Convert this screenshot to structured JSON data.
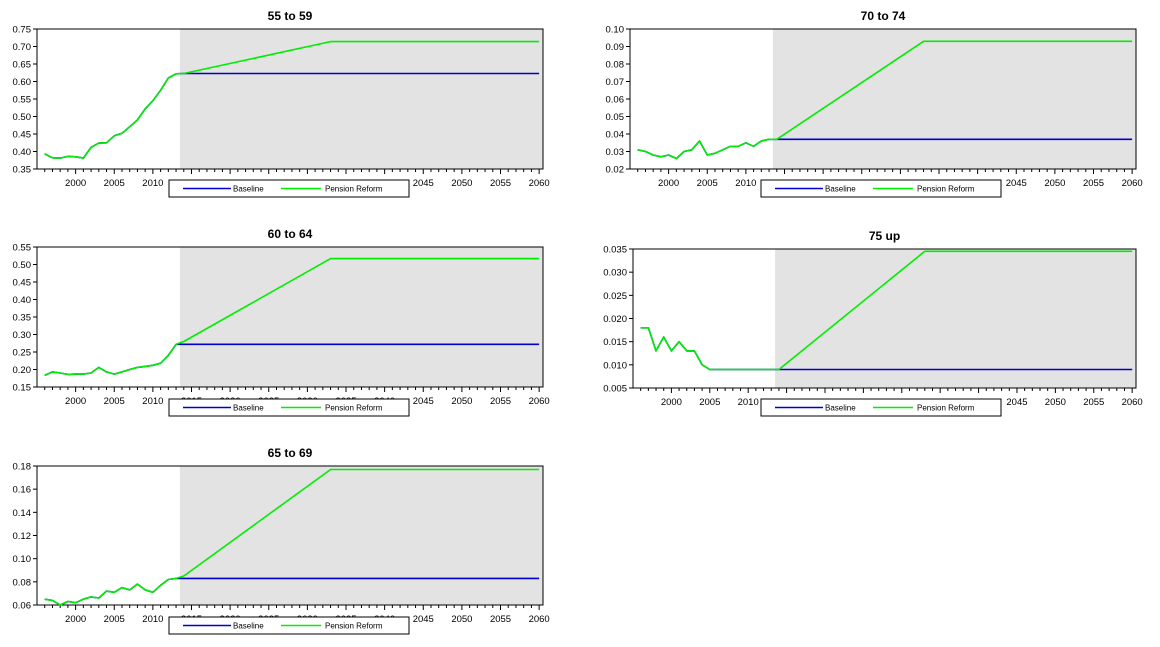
{
  "chart_data": [
    {
      "type": "line",
      "title": "55 to 59",
      "xlabel": "",
      "ylabel": "",
      "xlim": [
        1995,
        2060.5
      ],
      "ylim": [
        0.35,
        0.75
      ],
      "yticks": [
        0.35,
        0.4,
        0.45,
        0.5,
        0.55,
        0.6,
        0.65,
        0.7,
        0.75
      ],
      "ytick_labels": [
        "0.35",
        "0.40",
        "0.45",
        "0.50",
        "0.55",
        "0.60",
        "0.65",
        "0.70",
        "0.75"
      ],
      "xticks": [
        2000,
        2005,
        2010,
        2015,
        2020,
        2025,
        2030,
        2035,
        2040,
        2045,
        2050,
        2055,
        2060
      ],
      "xtick_labels": [
        "2000",
        "2005",
        "2010",
        "2015",
        "2020",
        "2025",
        "2030",
        "2035",
        "2040",
        "2045",
        "2050",
        "2055",
        "2060"
      ],
      "shaded_region": [
        2013.5,
        2060.5
      ],
      "legend_position": "bottom",
      "series": [
        {
          "name": "Baseline",
          "color": "#0000cc",
          "x": [
            1996,
            1997,
            1998,
            1999,
            2000,
            2001,
            2002,
            2003,
            2004,
            2005,
            2006,
            2007,
            2008,
            2009,
            2010,
            2011,
            2012,
            2013,
            2014,
            2060
          ],
          "y": [
            0.393,
            0.382,
            0.381,
            0.386,
            0.385,
            0.381,
            0.412,
            0.424,
            0.425,
            0.445,
            0.452,
            0.471,
            0.49,
            0.522,
            0.545,
            0.575,
            0.61,
            0.622,
            0.623,
            0.623
          ]
        },
        {
          "name": "Pension Reform",
          "color": "#00ee00",
          "x": [
            1996,
            1997,
            1998,
            1999,
            2000,
            2001,
            2002,
            2003,
            2004,
            2005,
            2006,
            2007,
            2008,
            2009,
            2010,
            2011,
            2012,
            2013,
            2014,
            2033,
            2060
          ],
          "y": [
            0.393,
            0.382,
            0.381,
            0.386,
            0.385,
            0.381,
            0.412,
            0.424,
            0.425,
            0.445,
            0.452,
            0.471,
            0.49,
            0.522,
            0.545,
            0.575,
            0.61,
            0.622,
            0.623,
            0.714,
            0.714
          ]
        }
      ]
    },
    {
      "type": "line",
      "title": "70 to 74",
      "xlabel": "",
      "ylabel": "",
      "xlim": [
        1995,
        2060.5
      ],
      "ylim": [
        0.02,
        0.1
      ],
      "yticks": [
        0.02,
        0.03,
        0.04,
        0.05,
        0.06,
        0.07,
        0.08,
        0.09,
        0.1
      ],
      "ytick_labels": [
        "0.02",
        "0.03",
        "0.04",
        "0.05",
        "0.06",
        "0.07",
        "0.08",
        "0.09",
        "0.10"
      ],
      "xticks": [
        2000,
        2005,
        2010,
        2015,
        2020,
        2025,
        2030,
        2035,
        2040,
        2045,
        2050,
        2055,
        2060
      ],
      "xtick_labels": [
        "2000",
        "2005",
        "2010",
        "2015",
        "2020",
        "2025",
        "2030",
        "2035",
        "2040",
        "2045",
        "2050",
        "2055",
        "2060"
      ],
      "shaded_region": [
        2013.5,
        2060.5
      ],
      "legend_position": "bottom",
      "series": [
        {
          "name": "Baseline",
          "color": "#0000cc",
          "x": [
            1996,
            1997,
            1998,
            1999,
            2000,
            2001,
            2002,
            2003,
            2004,
            2005,
            2006,
            2007,
            2008,
            2009,
            2010,
            2011,
            2012,
            2013,
            2014,
            2060
          ],
          "y": [
            0.031,
            0.03,
            0.028,
            0.027,
            0.028,
            0.026,
            0.03,
            0.031,
            0.036,
            0.028,
            0.029,
            0.031,
            0.033,
            0.033,
            0.035,
            0.033,
            0.036,
            0.037,
            0.037,
            0.037
          ]
        },
        {
          "name": "Pension Reform",
          "color": "#00ee00",
          "x": [
            1996,
            1997,
            1998,
            1999,
            2000,
            2001,
            2002,
            2003,
            2004,
            2005,
            2006,
            2007,
            2008,
            2009,
            2010,
            2011,
            2012,
            2013,
            2014,
            2033,
            2060
          ],
          "y": [
            0.031,
            0.03,
            0.028,
            0.027,
            0.028,
            0.026,
            0.03,
            0.031,
            0.036,
            0.028,
            0.029,
            0.031,
            0.033,
            0.033,
            0.035,
            0.033,
            0.036,
            0.037,
            0.037,
            0.093,
            0.093
          ]
        }
      ]
    },
    {
      "type": "line",
      "title": "60 to 64",
      "xlabel": "",
      "ylabel": "",
      "xlim": [
        1995,
        2060.5
      ],
      "ylim": [
        0.15,
        0.55
      ],
      "yticks": [
        0.15,
        0.2,
        0.25,
        0.3,
        0.35,
        0.4,
        0.45,
        0.5,
        0.55
      ],
      "ytick_labels": [
        "0.15",
        "0.20",
        "0.25",
        "0.30",
        "0.35",
        "0.40",
        "0.45",
        "0.50",
        "0.55"
      ],
      "xticks": [
        2000,
        2005,
        2010,
        2015,
        2020,
        2025,
        2030,
        2035,
        2040,
        2045,
        2050,
        2055,
        2060
      ],
      "xtick_labels": [
        "2000",
        "2005",
        "2010",
        "2015",
        "2020",
        "2025",
        "2030",
        "2035",
        "2040",
        "2045",
        "2050",
        "2055",
        "2060"
      ],
      "shaded_region": [
        2013.5,
        2060.5
      ],
      "legend_position": "bottom",
      "series": [
        {
          "name": "Baseline",
          "color": "#0000cc",
          "x": [
            1996,
            1997,
            1998,
            1999,
            2000,
            2001,
            2002,
            2003,
            2004,
            2005,
            2006,
            2007,
            2008,
            2009,
            2010,
            2011,
            2012,
            2013,
            2014,
            2060
          ],
          "y": [
            0.183,
            0.193,
            0.19,
            0.186,
            0.187,
            0.187,
            0.19,
            0.206,
            0.193,
            0.187,
            0.193,
            0.2,
            0.206,
            0.209,
            0.212,
            0.218,
            0.24,
            0.272,
            0.272,
            0.272
          ]
        },
        {
          "name": "Pension Reform",
          "color": "#00ee00",
          "x": [
            1996,
            1997,
            1998,
            1999,
            2000,
            2001,
            2002,
            2003,
            2004,
            2005,
            2006,
            2007,
            2008,
            2009,
            2010,
            2011,
            2012,
            2013,
            2014,
            2033,
            2060
          ],
          "y": [
            0.183,
            0.193,
            0.19,
            0.186,
            0.187,
            0.187,
            0.19,
            0.206,
            0.193,
            0.187,
            0.193,
            0.2,
            0.206,
            0.209,
            0.212,
            0.218,
            0.24,
            0.272,
            0.28,
            0.517,
            0.517
          ]
        }
      ]
    },
    {
      "type": "line",
      "title": "75 up",
      "xlabel": "",
      "ylabel": "",
      "xlim": [
        1995,
        2060.5
      ],
      "ylim": [
        0.005,
        0.035
      ],
      "yticks": [
        0.005,
        0.01,
        0.015,
        0.02,
        0.025,
        0.03,
        0.035
      ],
      "ytick_labels": [
        "0.005",
        "0.010",
        "0.015",
        "0.020",
        "0.025",
        "0.030",
        "0.035"
      ],
      "xticks": [
        2000,
        2005,
        2010,
        2015,
        2020,
        2025,
        2030,
        2035,
        2040,
        2045,
        2050,
        2055,
        2060
      ],
      "xtick_labels": [
        "2000",
        "2005",
        "2010",
        "2015",
        "2020",
        "2025",
        "2030",
        "2035",
        "2040",
        "2045",
        "2050",
        "2055",
        "2060"
      ],
      "shaded_region": [
        2013.5,
        2060.5
      ],
      "legend_position": "bottom",
      "series": [
        {
          "name": "Baseline",
          "color": "#0000cc",
          "x": [
            1996,
            1997,
            1998,
            1999,
            2000,
            2001,
            2002,
            2003,
            2004,
            2005,
            2006,
            2007,
            2008,
            2009,
            2010,
            2011,
            2012,
            2013,
            2014,
            2060
          ],
          "y": [
            0.018,
            0.018,
            0.013,
            0.016,
            0.013,
            0.015,
            0.013,
            0.013,
            0.01,
            0.009,
            0.009,
            0.009,
            0.009,
            0.009,
            0.009,
            0.009,
            0.009,
            0.009,
            0.009,
            0.009
          ]
        },
        {
          "name": "Pension Reform",
          "color": "#00ee00",
          "x": [
            1996,
            1997,
            1998,
            1999,
            2000,
            2001,
            2002,
            2003,
            2004,
            2005,
            2006,
            2007,
            2008,
            2009,
            2010,
            2011,
            2012,
            2013,
            2014,
            2033,
            2060
          ],
          "y": [
            0.018,
            0.018,
            0.013,
            0.016,
            0.013,
            0.015,
            0.013,
            0.013,
            0.01,
            0.009,
            0.009,
            0.009,
            0.009,
            0.009,
            0.009,
            0.009,
            0.009,
            0.009,
            0.009,
            0.0345,
            0.0345
          ]
        }
      ]
    },
    {
      "type": "line",
      "title": "65 to 69",
      "xlabel": "",
      "ylabel": "",
      "xlim": [
        1995,
        2060.5
      ],
      "ylim": [
        0.06,
        0.18
      ],
      "yticks": [
        0.06,
        0.08,
        0.1,
        0.12,
        0.14,
        0.16,
        0.18
      ],
      "ytick_labels": [
        "0.06",
        "0.08",
        "0.10",
        "0.12",
        "0.14",
        "0.16",
        "0.18"
      ],
      "xticks": [
        2000,
        2005,
        2010,
        2015,
        2020,
        2025,
        2030,
        2035,
        2040,
        2045,
        2050,
        2055,
        2060
      ],
      "xtick_labels": [
        "2000",
        "2005",
        "2010",
        "2015",
        "2020",
        "2025",
        "2030",
        "2035",
        "2040",
        "2045",
        "2050",
        "2055",
        "2060"
      ],
      "shaded_region": [
        2013.5,
        2060.5
      ],
      "legend_position": "bottom",
      "series": [
        {
          "name": "Baseline",
          "color": "#0000cc",
          "x": [
            1996,
            1997,
            1998,
            1999,
            2000,
            2001,
            2002,
            2003,
            2004,
            2005,
            2006,
            2007,
            2008,
            2009,
            2010,
            2011,
            2012,
            2013,
            2014,
            2060
          ],
          "y": [
            0.065,
            0.064,
            0.06,
            0.063,
            0.062,
            0.065,
            0.067,
            0.066,
            0.072,
            0.071,
            0.075,
            0.073,
            0.078,
            0.073,
            0.071,
            0.077,
            0.082,
            0.083,
            0.083,
            0.083
          ]
        },
        {
          "name": "Pension Reform",
          "color": "#00ee00",
          "x": [
            1996,
            1997,
            1998,
            1999,
            2000,
            2001,
            2002,
            2003,
            2004,
            2005,
            2006,
            2007,
            2008,
            2009,
            2010,
            2011,
            2012,
            2013,
            2014,
            2033,
            2060
          ],
          "y": [
            0.065,
            0.064,
            0.06,
            0.063,
            0.062,
            0.065,
            0.067,
            0.066,
            0.072,
            0.071,
            0.075,
            0.073,
            0.078,
            0.073,
            0.071,
            0.077,
            0.082,
            0.083,
            0.085,
            0.177,
            0.177
          ]
        }
      ]
    }
  ]
}
